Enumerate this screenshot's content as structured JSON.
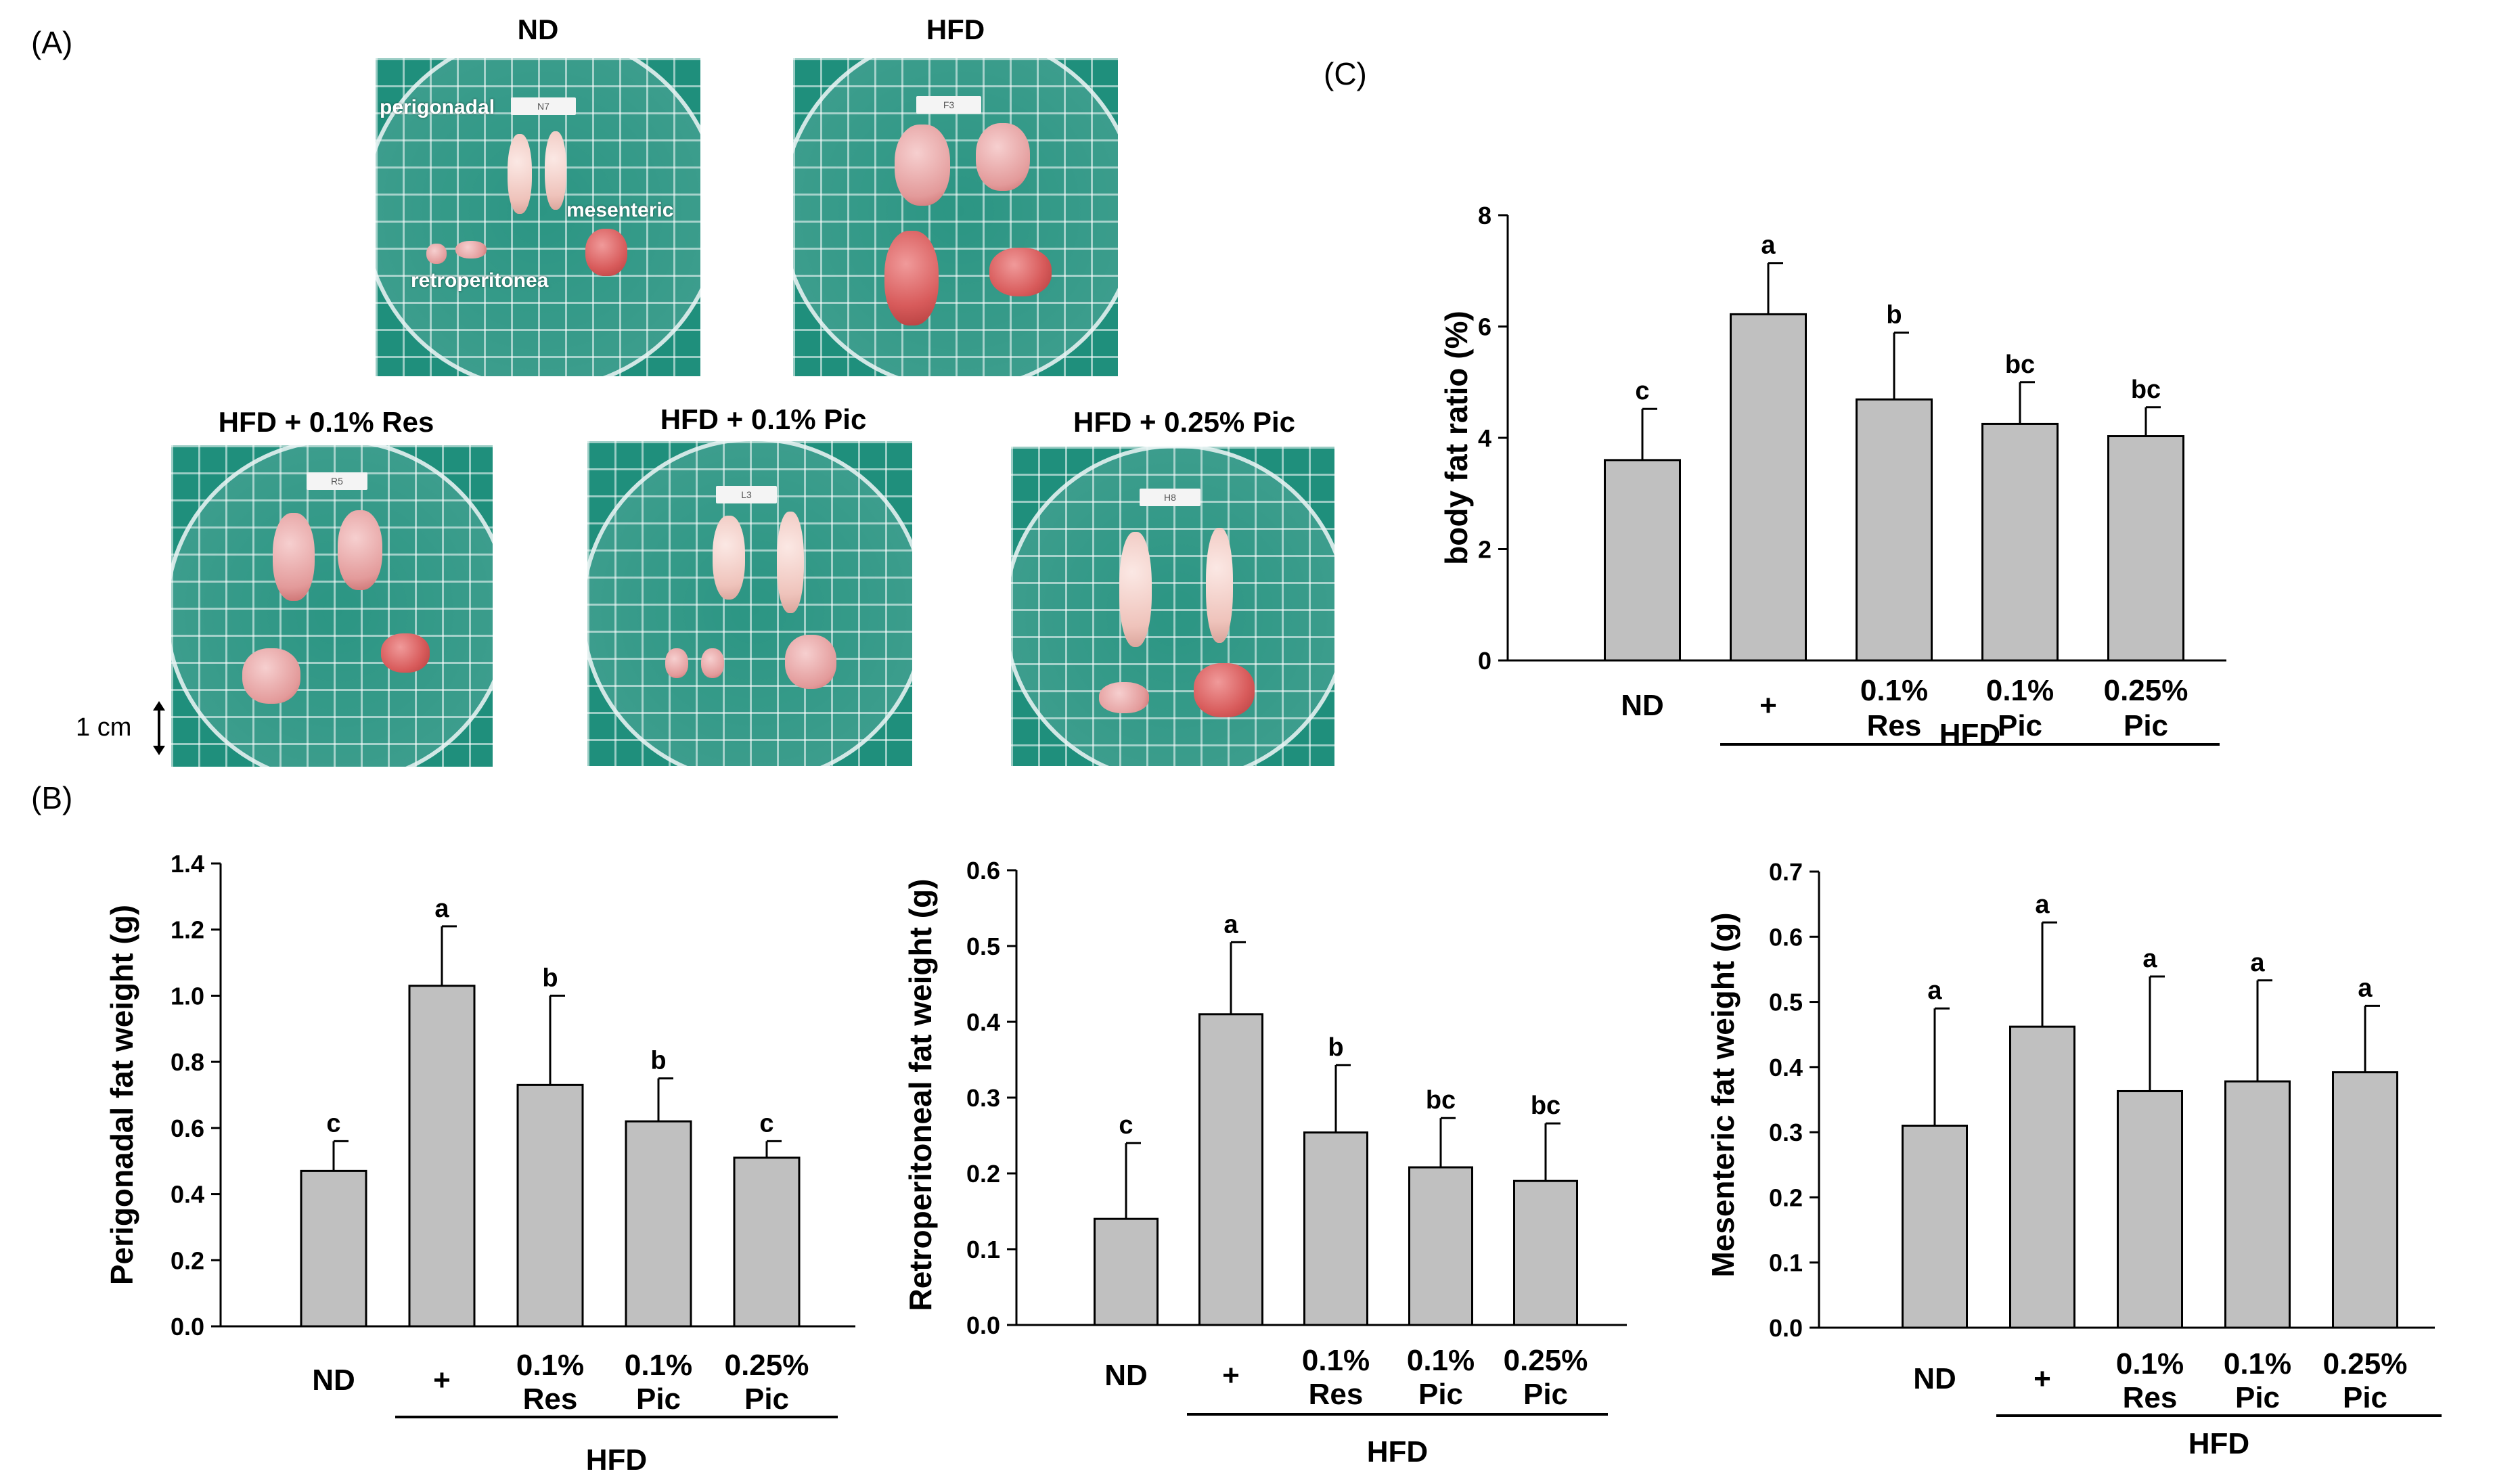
{
  "panels": {
    "a_label": "(A)",
    "b_label": "(B)",
    "c_label": "(C)"
  },
  "photos": {
    "nd": {
      "title": "ND",
      "tag": "N7"
    },
    "hfd": {
      "title": "HFD",
      "tag": "F3"
    },
    "res": {
      "title": "HFD + 0.1% Res",
      "tag": "R5"
    },
    "pic01": {
      "title": "HFD + 0.1% Pic",
      "tag": "L3"
    },
    "pic025": {
      "title": "HFD + 0.25% Pic",
      "tag": "H8"
    },
    "annotations": {
      "perigonadal": "perigonadal",
      "mesenteric": "mesenteric",
      "retroperitoneal": "retroperitonea"
    },
    "scale_bar": "1 cm"
  },
  "colors": {
    "bar_fill": "#c0c0c0",
    "bar_stroke": "#000000",
    "photo_bg": "#1f8f7c"
  },
  "chart_data": [
    {
      "id": "bodyfat",
      "type": "bar",
      "title": "",
      "ylabel": "body fat ratio (%)",
      "xlabel": "",
      "group_label": "HFD",
      "categories": [
        [
          "ND"
        ],
        [
          "+"
        ],
        [
          "0.1%",
          "Res"
        ],
        [
          "0.1%",
          "Pic"
        ],
        [
          "0.25%",
          "Pic"
        ]
      ],
      "values": [
        3.6,
        6.22,
        4.69,
        4.25,
        4.03
      ],
      "errors": [
        0.92,
        0.92,
        1.2,
        0.75,
        0.52
      ],
      "letters": [
        "c",
        "a",
        "b",
        "bc",
        "bc"
      ],
      "ylim": [
        0,
        8
      ],
      "yticks": [
        0,
        2,
        4,
        6,
        8
      ],
      "yticklabels": [
        "0",
        "2",
        "4",
        "6",
        "8"
      ]
    },
    {
      "id": "perigonadal",
      "type": "bar",
      "title": "",
      "ylabel": "Perigonadal fat weight (g)",
      "xlabel": "",
      "group_label": "HFD",
      "categories": [
        [
          "ND"
        ],
        [
          "+"
        ],
        [
          "0.1%",
          "Res"
        ],
        [
          "0.1%",
          "Pic"
        ],
        [
          "0.25%",
          "Pic"
        ]
      ],
      "values": [
        0.47,
        1.03,
        0.73,
        0.62,
        0.51
      ],
      "errors": [
        0.09,
        0.18,
        0.27,
        0.13,
        0.05
      ],
      "letters": [
        "c",
        "a",
        "b",
        "b",
        "c"
      ],
      "ylim": [
        0,
        1.4
      ],
      "yticks": [
        0,
        0.2,
        0.4,
        0.6,
        0.8,
        1.0,
        1.2,
        1.4
      ],
      "yticklabels": [
        "0.0",
        "0.2",
        "0.4",
        "0.6",
        "0.8",
        "1.0",
        "1.2",
        "1.4"
      ]
    },
    {
      "id": "retroperitoneal",
      "type": "bar",
      "title": "",
      "ylabel": "Retroperitoneal fat weight (g)",
      "xlabel": "",
      "group_label": "HFD",
      "categories": [
        [
          "ND"
        ],
        [
          "+"
        ],
        [
          "0.1%",
          "Res"
        ],
        [
          "0.1%",
          "Pic"
        ],
        [
          "0.25%",
          "Pic"
        ]
      ],
      "values": [
        0.14,
        0.41,
        0.254,
        0.208,
        0.19
      ],
      "errors": [
        0.1,
        0.095,
        0.089,
        0.065,
        0.076
      ],
      "letters": [
        "c",
        "a",
        "b",
        "bc",
        "bc"
      ],
      "ylim": [
        0,
        0.6
      ],
      "yticks": [
        0,
        0.1,
        0.2,
        0.3,
        0.4,
        0.5,
        0.6
      ],
      "yticklabels": [
        "0.0",
        "0.1",
        "0.2",
        "0.3",
        "0.4",
        "0.5",
        "0.6"
      ]
    },
    {
      "id": "mesenteric",
      "type": "bar",
      "title": "",
      "ylabel": "Mesenteric fat weight (g)",
      "xlabel": "",
      "group_label": "HFD",
      "categories": [
        [
          "ND"
        ],
        [
          "+"
        ],
        [
          "0.1%",
          "Res"
        ],
        [
          "0.1%",
          "Pic"
        ],
        [
          "0.25%",
          "Pic"
        ]
      ],
      "values": [
        0.31,
        0.462,
        0.363,
        0.378,
        0.392
      ],
      "errors": [
        0.18,
        0.16,
        0.176,
        0.155,
        0.102
      ],
      "letters": [
        "a",
        "a",
        "a",
        "a",
        "a"
      ],
      "ylim": [
        0,
        0.7
      ],
      "yticks": [
        0,
        0.1,
        0.2,
        0.3,
        0.4,
        0.5,
        0.6,
        0.7
      ],
      "yticklabels": [
        "0.0",
        "0.1",
        "0.2",
        "0.3",
        "0.4",
        "0.5",
        "0.6",
        "0.7"
      ]
    }
  ]
}
